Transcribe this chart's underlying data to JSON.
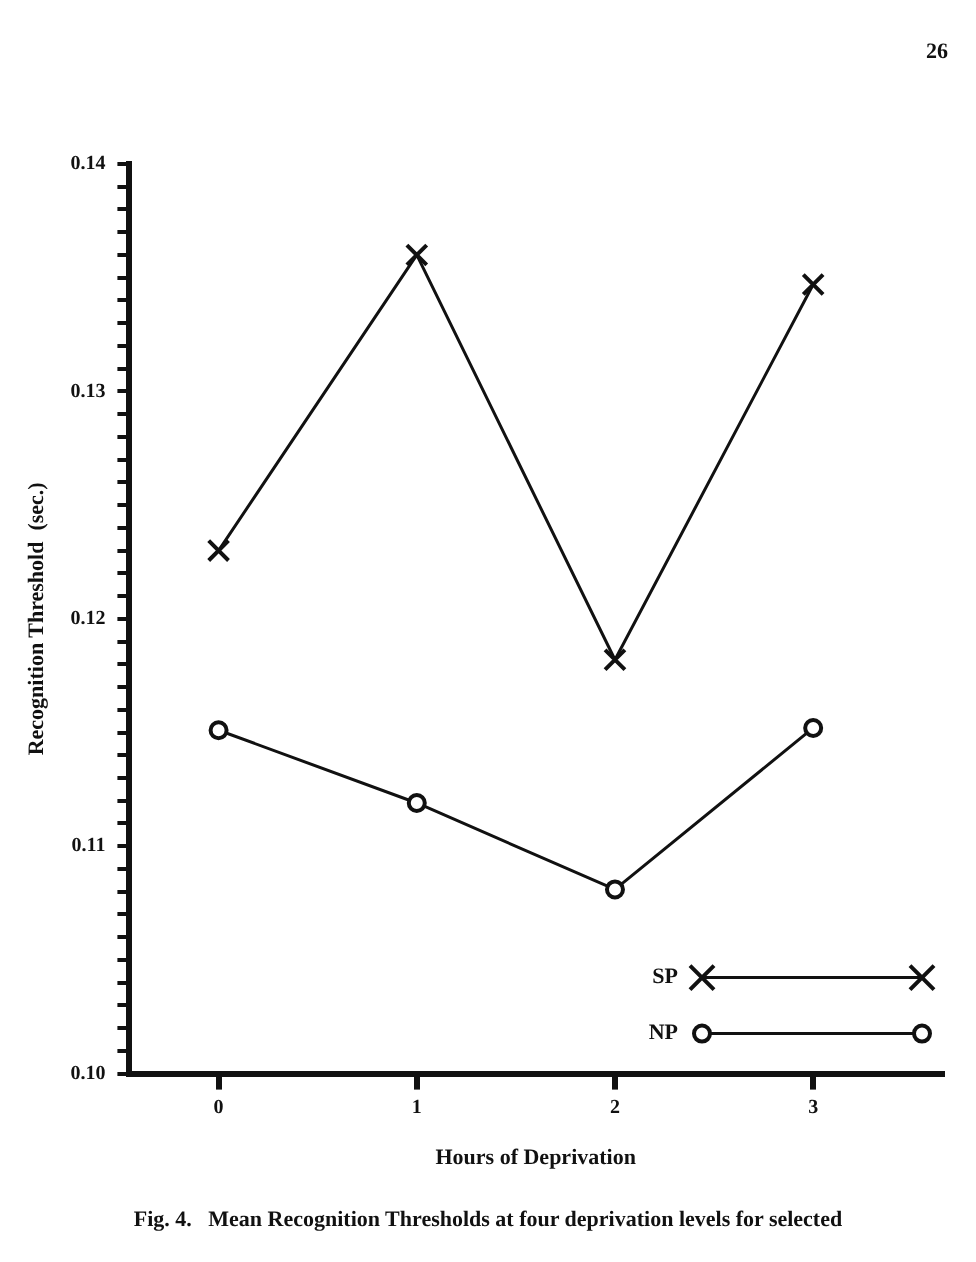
{
  "chart_data": {
    "type": "line",
    "xlabel": "Hours of Deprivation",
    "ylabel": "Recognition Threshold  (sec.)",
    "x": [
      0,
      1,
      2,
      3
    ],
    "xlim": [
      -0.45,
      3.65
    ],
    "xticks": [
      0,
      1,
      2,
      3
    ],
    "ylim": [
      0.1,
      0.14
    ],
    "yticks": [
      {
        "value": 0.1,
        "label": "0.10"
      },
      {
        "value": 0.101,
        "label": null
      },
      {
        "value": 0.102,
        "label": null
      },
      {
        "value": 0.103,
        "label": null
      },
      {
        "value": 0.104,
        "label": null
      },
      {
        "value": 0.105,
        "label": null
      },
      {
        "value": 0.106,
        "label": null
      },
      {
        "value": 0.107,
        "label": null
      },
      {
        "value": 0.108,
        "label": null
      },
      {
        "value": 0.109,
        "label": null
      },
      {
        "value": 0.11,
        "label": "0.11"
      },
      {
        "value": 0.111,
        "label": null
      },
      {
        "value": 0.112,
        "label": null
      },
      {
        "value": 0.113,
        "label": null
      },
      {
        "value": 0.114,
        "label": null
      },
      {
        "value": 0.115,
        "label": null
      },
      {
        "value": 0.116,
        "label": null
      },
      {
        "value": 0.117,
        "label": null
      },
      {
        "value": 0.118,
        "label": null
      },
      {
        "value": 0.119,
        "label": null
      },
      {
        "value": 0.12,
        "label": "0.12"
      },
      {
        "value": 0.121,
        "label": null
      },
      {
        "value": 0.122,
        "label": null
      },
      {
        "value": 0.123,
        "label": null
      },
      {
        "value": 0.124,
        "label": null
      },
      {
        "value": 0.125,
        "label": null
      },
      {
        "value": 0.126,
        "label": null
      },
      {
        "value": 0.127,
        "label": null
      },
      {
        "value": 0.128,
        "label": null
      },
      {
        "value": 0.129,
        "label": null
      },
      {
        "value": 0.13,
        "label": "0.13"
      },
      {
        "value": 0.131,
        "label": null
      },
      {
        "value": 0.132,
        "label": null
      },
      {
        "value": 0.133,
        "label": null
      },
      {
        "value": 0.134,
        "label": null
      },
      {
        "value": 0.135,
        "label": null
      },
      {
        "value": 0.136,
        "label": null
      },
      {
        "value": 0.137,
        "label": null
      },
      {
        "value": 0.138,
        "label": null
      },
      {
        "value": 0.139,
        "label": null
      },
      {
        "value": 0.14,
        "label": "0.14"
      }
    ],
    "series": [
      {
        "name": "SP",
        "color": "#111111",
        "marker": "cross",
        "values": [
          0.123,
          0.136,
          0.1182,
          0.1347
        ]
      },
      {
        "name": "NP",
        "color": "#111111",
        "marker": "circle",
        "values": [
          0.1151,
          0.1119,
          0.1081,
          0.1152
        ]
      }
    ],
    "grid": false,
    "legend": "bottom right",
    "line_style": "solid",
    "annotations": [
      "26",
      "Fig. 4.   Mean Recognition Thresholds at four deprivation levels for selected"
    ]
  }
}
